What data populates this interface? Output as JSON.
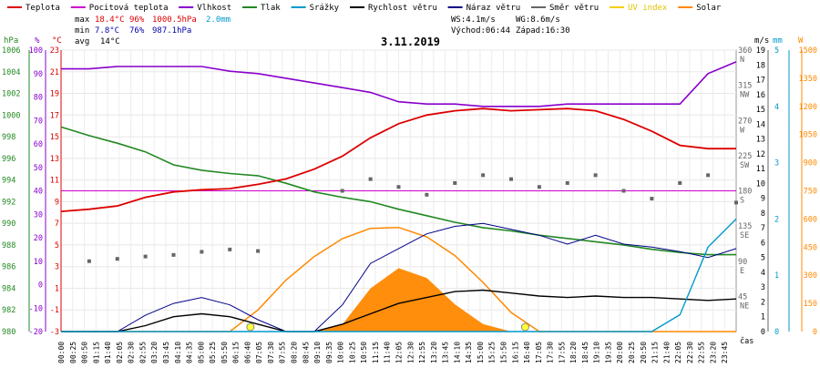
{
  "chart_data": {
    "type": "line",
    "title": "3.11.2019",
    "colors": {
      "temp": "#dd0000",
      "feels": "#cc00cc",
      "hum": "#8800cc",
      "pres": "#228822",
      "rain": "#0099cc",
      "wind": "#000000",
      "gust": "#000088",
      "dir": "#666666",
      "uv": "#f2d000",
      "solar": "#ff8800",
      "max": "#dd0000",
      "min": "#0000aa"
    },
    "legend": [
      {
        "key": "temp",
        "label": "Teplota"
      },
      {
        "key": "feels",
        "label": "Pocitová teplota"
      },
      {
        "key": "hum",
        "label": "Vlhkost"
      },
      {
        "key": "pres",
        "label": "Tlak"
      },
      {
        "key": "rain",
        "label": "Srážky"
      },
      {
        "key": "wind",
        "label": "Rychlost větru"
      },
      {
        "key": "gust",
        "label": "Náraz větru"
      },
      {
        "key": "dir",
        "label": "Směr větru"
      },
      {
        "key": "uv",
        "label": "UV index"
      },
      {
        "key": "solar",
        "label": "Solar"
      }
    ],
    "stats": {
      "max_label": "max",
      "max_temp": "18.4°C",
      "max_hum": "96%",
      "max_pres": "1000.5hPa",
      "rain_total": "2.0mm",
      "min_label": "min",
      "min_temp": "7.8°C",
      "min_hum": "76%",
      "min_pres": "987.1hPa",
      "avg_label": "avg",
      "avg_temp": "14°C"
    },
    "info": {
      "ws": "WS:4.1m/s",
      "wg": "WG:8.6m/s",
      "sunrise": "Východ:06:44",
      "sunset": "Západ:16:30"
    },
    "axes": {
      "pres_unit": "hPa",
      "hum_unit": "%",
      "temp_unit": "°C",
      "wind_unit": "m/s",
      "rain_unit": "mm",
      "solar_unit": "W",
      "x_label": "čas",
      "pres_ticks": [
        "980",
        "982",
        "984",
        "986",
        "988",
        "990",
        "992",
        "994",
        "996",
        "998",
        "1000",
        "1002",
        "1004",
        "1006"
      ],
      "hum_ticks": [
        "-20",
        "-10",
        "0",
        "10",
        "20",
        "30",
        "40",
        "50",
        "60",
        "70",
        "80",
        "90",
        "100"
      ],
      "temp_ticks": [
        "-3",
        "-1",
        "1",
        "3",
        "5",
        "7",
        "9",
        "11",
        "13",
        "15",
        "17",
        "19",
        "21",
        "23"
      ],
      "dir_ticks": [
        "45\nNE",
        "90\nE",
        "135\nSE",
        "180\nS",
        "225\nSW",
        "270\nW",
        "315\nNW",
        "360\nN"
      ],
      "wind_ticks": [
        "0",
        "1",
        "2",
        "3",
        "4",
        "5",
        "6",
        "7",
        "8",
        "9",
        "10",
        "11",
        "12",
        "13",
        "14",
        "15",
        "16",
        "17",
        "18",
        "19"
      ],
      "rain_ticks": [
        "0",
        "1",
        "2",
        "3",
        "4",
        "5"
      ],
      "solar_ticks": [
        "0",
        "150",
        "300",
        "450",
        "600",
        "750",
        "900",
        "1050",
        "1200",
        "1350",
        "1500"
      ],
      "temp_range": [
        -3,
        23
      ],
      "hum_range": [
        -20,
        100
      ],
      "pres_range": [
        980,
        1006
      ],
      "wind_range": [
        0,
        19
      ],
      "dir_range": [
        0,
        360
      ],
      "rain_range": [
        0,
        5
      ],
      "solar_range": [
        0,
        1500
      ],
      "x_ticks": [
        "00:00",
        "00:25",
        "00:50",
        "01:15",
        "01:40",
        "02:05",
        "02:30",
        "02:55",
        "03:20",
        "03:45",
        "04:10",
        "04:35",
        "05:00",
        "05:25",
        "05:50",
        "06:15",
        "06:40",
        "07:05",
        "07:30",
        "07:55",
        "08:20",
        "08:45",
        "09:10",
        "09:35",
        "10:00",
        "10:25",
        "10:50",
        "11:15",
        "11:40",
        "12:05",
        "12:30",
        "12:55",
        "13:20",
        "13:45",
        "14:10",
        "14:35",
        "15:00",
        "15:25",
        "15:50",
        "16:15",
        "16:40",
        "17:05",
        "17:30",
        "17:55",
        "18:20",
        "18:45",
        "19:10",
        "19:35",
        "20:00",
        "20:25",
        "20:50",
        "21:15",
        "21:40",
        "22:05",
        "22:30",
        "22:55",
        "23:20",
        "23:45"
      ]
    },
    "x_hours": [
      0,
      1,
      2,
      3,
      4,
      5,
      6,
      7,
      8,
      9,
      10,
      11,
      12,
      13,
      14,
      15,
      16,
      17,
      18,
      19,
      20,
      21,
      22,
      23,
      24
    ],
    "temp": [
      8.1,
      8.3,
      8.6,
      9.4,
      9.9,
      10.1,
      10.2,
      10.6,
      11.1,
      12.0,
      13.2,
      14.9,
      16.2,
      17.0,
      17.4,
      17.6,
      17.4,
      17.5,
      17.6,
      17.4,
      16.6,
      15.5,
      14.2,
      13.9,
      13.9
    ],
    "humidity": [
      92,
      92,
      93,
      93,
      93,
      93,
      91,
      90,
      88,
      86,
      84,
      82,
      78,
      77,
      77,
      76,
      76,
      76,
      77,
      77,
      77,
      77,
      77,
      90,
      95
    ],
    "pressure": [
      998.9,
      998.1,
      997.4,
      996.6,
      995.4,
      994.9,
      994.6,
      994.4,
      993.7,
      992.9,
      992.4,
      992.0,
      991.3,
      990.7,
      990.1,
      989.6,
      989.3,
      988.9,
      988.6,
      988.3,
      988.0,
      987.6,
      987.3,
      987.1,
      987.1
    ],
    "wind": [
      0,
      0,
      0,
      0.4,
      1.0,
      1.2,
      1.0,
      0.5,
      0,
      0,
      0.5,
      1.2,
      1.9,
      2.3,
      2.7,
      2.8,
      2.6,
      2.4,
      2.3,
      2.4,
      2.3,
      2.3,
      2.2,
      2.1,
      2.2
    ],
    "gust": [
      0,
      0,
      0,
      1.1,
      1.9,
      2.3,
      1.8,
      0.8,
      0,
      0,
      1.8,
      4.6,
      5.6,
      6.6,
      7.1,
      7.3,
      6.9,
      6.5,
      5.9,
      6.5,
      5.9,
      5.7,
      5.4,
      5.0,
      5.6
    ],
    "dir": [
      null,
      90,
      93,
      96,
      98,
      102,
      105,
      103,
      null,
      null,
      180,
      195,
      185,
      175,
      190,
      200,
      195,
      185,
      190,
      200,
      180,
      170,
      190,
      200,
      165
    ],
    "rain": [
      0,
      0,
      0,
      0,
      0,
      0,
      0,
      0,
      0,
      0,
      0,
      0,
      0,
      0,
      0,
      0,
      0,
      0,
      0,
      0,
      0,
      0,
      0.3,
      1.5,
      2.0
    ],
    "solar": [
      0,
      0,
      0,
      0,
      0,
      0,
      0,
      0,
      0,
      0,
      38,
      230,
      338,
      286,
      145,
      40,
      0,
      0,
      0,
      0,
      0,
      0,
      0,
      0,
      0
    ],
    "solar_theory": [
      0,
      0,
      0,
      0,
      0,
      0,
      0,
      115,
      275,
      400,
      495,
      550,
      555,
      505,
      405,
      262,
      102,
      0,
      0,
      0,
      0,
      0,
      0,
      0,
      0
    ],
    "reference_line": 10,
    "sun_events": [
      6.733,
      16.5
    ]
  }
}
